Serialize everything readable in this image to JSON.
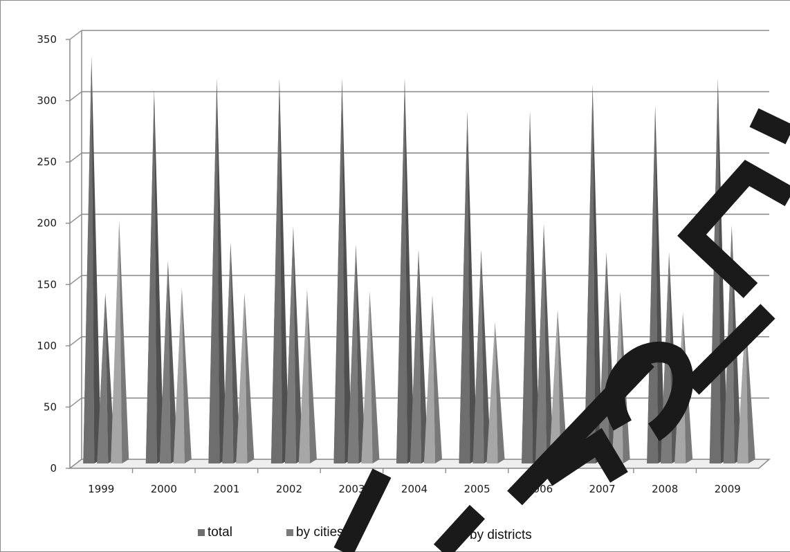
{
  "chart_data": {
    "type": "bar",
    "categories": [
      "1999",
      "2000",
      "2001",
      "2002",
      "2003",
      "2004",
      "2005",
      "2006",
      "2007",
      "2008",
      "2009"
    ],
    "series": [
      {
        "name": "total",
        "color": "#6e6e6e",
        "values": [
          330,
          303,
          312,
          312,
          312,
          312,
          285,
          285,
          307,
          290,
          312
        ]
      },
      {
        "name": "by cities",
        "color": "#7b7b7b",
        "values": [
          137,
          163,
          178,
          191,
          176,
          172,
          172,
          193,
          170,
          170,
          192
        ]
      },
      {
        "name": "by districts",
        "color": "#a6a6a6",
        "values": [
          196,
          141,
          137,
          140,
          138,
          135,
          113,
          123,
          138,
          121,
          119
        ]
      }
    ],
    "ylim": [
      0,
      350
    ],
    "yticks": [
      0,
      50,
      100,
      150,
      200,
      250,
      300,
      350
    ],
    "grid": true,
    "legend_position": "bottom",
    "mark_shape": "pyramid"
  },
  "watermark": {
    "color": "#1a1a1a"
  }
}
